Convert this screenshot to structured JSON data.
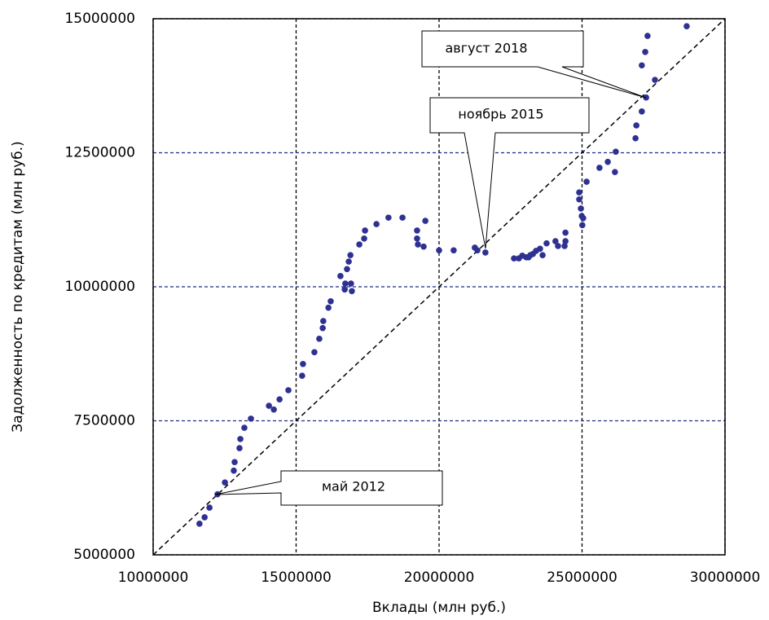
{
  "chart_data": {
    "type": "scatter",
    "xlabel": "Вклады (млн руб.)",
    "ylabel": "Задолженность по кредитам (млн руб.)",
    "xlim": [
      10000000,
      30000000
    ],
    "xticks": [
      10000000,
      15000000,
      20000000,
      25000000,
      30000000
    ],
    "ylim": [
      5000000,
      15000000
    ],
    "yticks": [
      5000000,
      7500000,
      10000000,
      12500000,
      15000000
    ],
    "grid": true,
    "color": "#2e3192",
    "x": [
      11620000,
      11800000,
      11970000,
      12250000,
      12510000,
      12820000,
      12850000,
      13020000,
      13050000,
      13190000,
      13420000,
      14050000,
      14220000,
      14420000,
      14730000,
      15210000,
      15240000,
      15640000,
      15810000,
      15930000,
      15950000,
      16130000,
      16210000,
      16550000,
      16700000,
      16720000,
      16780000,
      16840000,
      16900000,
      16920000,
      16950000,
      17210000,
      17380000,
      17410000,
      17810000,
      18230000,
      18720000,
      19230000,
      19230000,
      19260000,
      19460000,
      19520000,
      20000000,
      20510000,
      21250000,
      21340000,
      21620000,
      22620000,
      22790000,
      22910000,
      23050000,
      23130000,
      23190000,
      23280000,
      23390000,
      23530000,
      23620000,
      23760000,
      24070000,
      24160000,
      24390000,
      24420000,
      24420000,
      24900000,
      24900000,
      24960000,
      24990000,
      25010000,
      25040000,
      25160000,
      25610000,
      25900000,
      26150000,
      26180000,
      26870000,
      26900000,
      27090000,
      27090000,
      27210000,
      27290000,
      27550000,
      28660000,
      27240000
    ],
    "values": [
      5580000,
      5700000,
      5880000,
      6130000,
      6350000,
      6570000,
      6730000,
      6990000,
      7160000,
      7370000,
      7540000,
      7780000,
      7710000,
      7900000,
      8070000,
      8340000,
      8560000,
      8780000,
      9030000,
      9230000,
      9360000,
      9610000,
      9730000,
      10200000,
      9950000,
      10060000,
      10330000,
      10470000,
      10590000,
      10060000,
      9920000,
      10790000,
      10900000,
      11050000,
      11170000,
      11290000,
      11290000,
      11050000,
      10900000,
      10790000,
      10750000,
      11230000,
      10680000,
      10680000,
      10730000,
      10680000,
      10640000,
      10530000,
      10530000,
      10580000,
      10550000,
      10550000,
      10590000,
      10610000,
      10670000,
      10710000,
      10590000,
      10810000,
      10850000,
      10760000,
      10760000,
      11010000,
      10850000,
      11760000,
      11630000,
      11460000,
      11320000,
      11150000,
      11280000,
      11960000,
      12220000,
      12330000,
      12140000,
      12520000,
      12770000,
      13010000,
      13270000,
      14130000,
      14380000,
      14680000,
      13860000,
      14860000,
      13530000
    ],
    "annotations": [
      "август 2018",
      "ноябрь 2015",
      "май 2012"
    ]
  }
}
